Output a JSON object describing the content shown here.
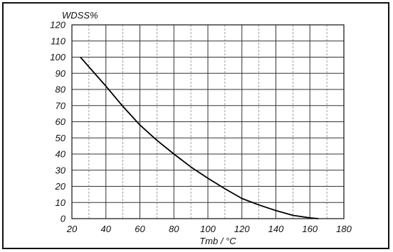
{
  "chart_data": {
    "type": "line",
    "ylabel": "WDSS%",
    "xlabel": "Tmb / °C",
    "xlim": [
      20,
      180
    ],
    "ylim": [
      0,
      120
    ],
    "x_ticks": [
      20,
      40,
      60,
      80,
      100,
      120,
      140,
      160,
      180
    ],
    "y_ticks": [
      0,
      10,
      20,
      30,
      40,
      50,
      60,
      70,
      80,
      90,
      100,
      110,
      120
    ],
    "grid": true,
    "legend": "none",
    "series": [
      {
        "x": [
          25,
          30,
          40,
          50,
          60,
          70,
          80,
          90,
          100,
          110,
          120,
          130,
          140,
          150,
          160,
          165
        ],
        "y": [
          100,
          94,
          82,
          69.5,
          58,
          48.5,
          40,
          32,
          25,
          18.5,
          12.5,
          8.5,
          5,
          2,
          0.5,
          0
        ]
      }
    ]
  }
}
